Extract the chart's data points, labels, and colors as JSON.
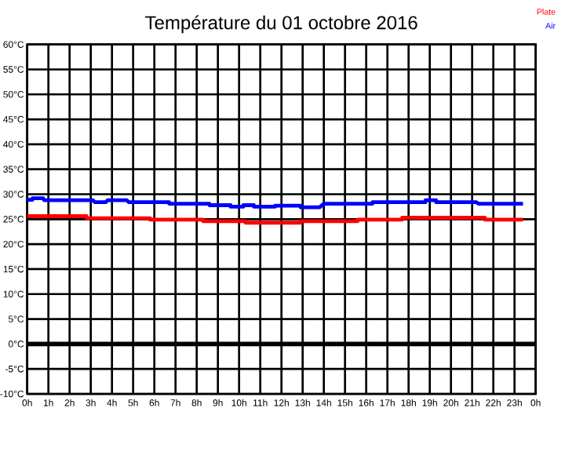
{
  "chart_data": {
    "type": "line",
    "title": "Température du 01 octobre 2016",
    "series": [
      {
        "name": "Plate",
        "color": "#ff0000",
        "x": [
          "2016-10-01T00:00",
          "2016-10-01T02:48",
          "2016-10-01T02:48",
          "2016-10-01T05:48",
          "2016-10-01T05:48",
          "2016-10-01T08:18",
          "2016-10-01T08:18",
          "2016-10-01T10:18",
          "2016-10-01T10:18",
          "2016-10-01T12:54",
          "2016-10-01T12:54",
          "2016-10-01T15:36",
          "2016-10-01T15:36",
          "2016-10-01T17:42",
          "2016-10-01T17:42",
          "2016-10-01T21:36",
          "2016-10-01T21:36",
          "2016-10-01T23:24"
        ],
        "values": [
          25.6,
          25.6,
          25.2,
          25.2,
          24.9,
          24.9,
          24.6,
          24.6,
          24.3,
          24.3,
          24.6,
          24.6,
          24.9,
          24.9,
          25.3,
          25.3,
          24.9,
          24.9
        ]
      },
      {
        "name": "Air",
        "color": "#0000ff",
        "x": [
          "2016-10-01T00:00",
          "2016-10-01T00:15",
          "2016-10-01T00:15",
          "2016-10-01T00:45",
          "2016-10-01T00:48",
          "2016-10-01T03:06",
          "2016-10-01T03:12",
          "2016-10-01T03:42",
          "2016-10-01T03:48",
          "2016-10-01T04:42",
          "2016-10-01T04:48",
          "2016-10-01T06:42",
          "2016-10-01T06:42",
          "2016-10-01T08:36",
          "2016-10-01T08:36",
          "2016-10-01T09:36",
          "2016-10-01T09:36",
          "2016-10-01T10:12",
          "2016-10-01T10:12",
          "2016-10-01T10:42",
          "2016-10-01T10:42",
          "2016-10-01T11:42",
          "2016-10-01T11:42",
          "2016-10-01T12:54",
          "2016-10-01T12:54",
          "2016-10-01T13:48",
          "2016-10-01T14:00",
          "2016-10-01T16:18",
          "2016-10-01T16:18",
          "2016-10-01T18:48",
          "2016-10-01T18:48",
          "2016-10-01T19:18",
          "2016-10-01T19:18",
          "2016-10-01T21:12",
          "2016-10-01T21:18",
          "2016-10-01T23:24"
        ],
        "values": [
          28.9,
          28.9,
          29.2,
          29.2,
          28.8,
          28.8,
          28.4,
          28.4,
          28.8,
          28.8,
          28.4,
          28.4,
          28.1,
          28.1,
          27.8,
          27.8,
          27.5,
          27.5,
          27.8,
          27.8,
          27.5,
          27.5,
          27.7,
          27.7,
          27.4,
          27.4,
          28.1,
          28.1,
          28.4,
          28.4,
          28.8,
          28.8,
          28.4,
          28.4,
          28.1,
          28.1
        ]
      }
    ],
    "xlim": [
      "2016-10-01T00:00",
      "2016-10-02T00:00"
    ],
    "xticks": [
      {
        "value": "2016-10-01T00:00",
        "label": "0h"
      },
      {
        "value": "2016-10-01T01:00",
        "label": "1h"
      },
      {
        "value": "2016-10-01T02:00",
        "label": "2h"
      },
      {
        "value": "2016-10-01T03:00",
        "label": "3h"
      },
      {
        "value": "2016-10-01T04:00",
        "label": "4h"
      },
      {
        "value": "2016-10-01T05:00",
        "label": "5h"
      },
      {
        "value": "2016-10-01T06:00",
        "label": "6h"
      },
      {
        "value": "2016-10-01T07:00",
        "label": "7h"
      },
      {
        "value": "2016-10-01T08:00",
        "label": "8h"
      },
      {
        "value": "2016-10-01T09:00",
        "label": "9h"
      },
      {
        "value": "2016-10-01T10:00",
        "label": "10h"
      },
      {
        "value": "2016-10-01T11:00",
        "label": "11h"
      },
      {
        "value": "2016-10-01T12:00",
        "label": "12h"
      },
      {
        "value": "2016-10-01T13:00",
        "label": "13h"
      },
      {
        "value": "2016-10-01T14:00",
        "label": "14h"
      },
      {
        "value": "2016-10-01T15:00",
        "label": "15h"
      },
      {
        "value": "2016-10-01T16:00",
        "label": "16h"
      },
      {
        "value": "2016-10-01T17:00",
        "label": "17h"
      },
      {
        "value": "2016-10-01T18:00",
        "label": "18h"
      },
      {
        "value": "2016-10-01T19:00",
        "label": "19h"
      },
      {
        "value": "2016-10-01T20:00",
        "label": "20h"
      },
      {
        "value": "2016-10-01T21:00",
        "label": "21h"
      },
      {
        "value": "2016-10-01T22:00",
        "label": "22h"
      },
      {
        "value": "2016-10-01T23:00",
        "label": "23h"
      },
      {
        "value": "2016-10-02T00:00",
        "label": "0h"
      }
    ],
    "ylim": [
      -10,
      60
    ],
    "yticks": [
      {
        "value": -10,
        "label": "-10°C"
      },
      {
        "value": -5,
        "label": "-5°C"
      },
      {
        "value": 0,
        "label": "0°C"
      },
      {
        "value": 5,
        "label": "5°C"
      },
      {
        "value": 10,
        "label": "10°C"
      },
      {
        "value": 15,
        "label": "15°C"
      },
      {
        "value": 20,
        "label": "20°C"
      },
      {
        "value": 25,
        "label": "25°C"
      },
      {
        "value": 30,
        "label": "30°C"
      },
      {
        "value": 35,
        "label": "35°C"
      },
      {
        "value": 40,
        "label": "40°C"
      },
      {
        "value": 45,
        "label": "45°C"
      },
      {
        "value": 50,
        "label": "50°C"
      },
      {
        "value": 55,
        "label": "55°C"
      },
      {
        "value": 60,
        "label": "60°C"
      }
    ],
    "ref_lines": [
      {
        "axis": "y",
        "value": 0,
        "color": "#000000"
      }
    ],
    "grid": true,
    "legend": "top right",
    "marker": "none",
    "line_style": "solid"
  }
}
